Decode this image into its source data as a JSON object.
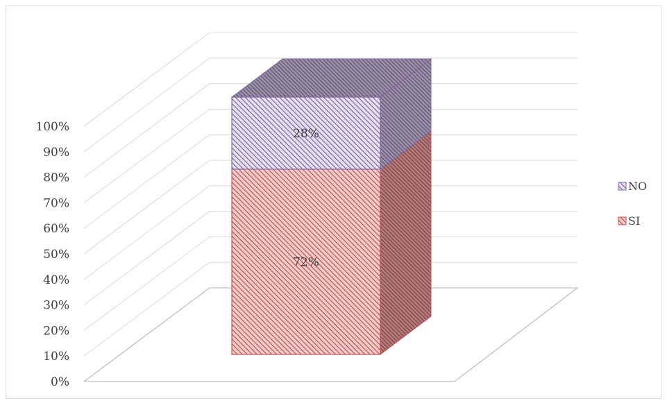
{
  "chart_data": {
    "type": "bar",
    "subtype": "3d-stacked-100-percent",
    "categories": [
      ""
    ],
    "series": [
      {
        "name": "SI",
        "values": [
          72
        ],
        "label": "72%",
        "color": "#c0504d"
      },
      {
        "name": "NO",
        "values": [
          28
        ],
        "label": "28%",
        "color": "#8064a2"
      }
    ],
    "yticks": [
      "0%",
      "10%",
      "20%",
      "30%",
      "40%",
      "50%",
      "60%",
      "70%",
      "80%",
      "90%",
      "100%"
    ],
    "ylim": [
      0,
      100
    ],
    "legend_position": "right",
    "grid": true
  }
}
